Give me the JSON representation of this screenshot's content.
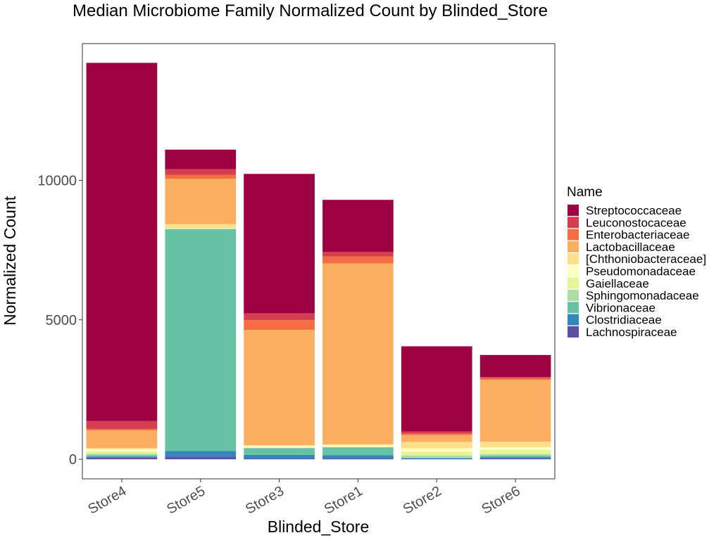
{
  "chart_data": {
    "type": "bar",
    "stacked": true,
    "title": "Median Microbiome Family Normalized Count by Blinded_Store",
    "xlabel": "Blinded_Store",
    "ylabel": "Normalized Count",
    "ylim": [
      -700,
      14900
    ],
    "yticks": [
      0,
      5000,
      10000
    ],
    "ytick_labels": [
      "0",
      "5000",
      "10000"
    ],
    "grid": false,
    "legend_position": "right",
    "legend_title": "Name",
    "categories": [
      "Store4",
      "Store5",
      "Store3",
      "Store1",
      "Store2",
      "Store6"
    ],
    "series": [
      {
        "name": "Lachnospiraceae",
        "color": "#5e4fa2",
        "values": [
          60,
          100,
          30,
          30,
          20,
          40
        ]
      },
      {
        "name": "Clostridiaceae",
        "color": "#3288bd",
        "values": [
          40,
          200,
          130,
          120,
          20,
          40
        ]
      },
      {
        "name": "Vibrionaceae",
        "color": "#66c2a5",
        "values": [
          50,
          7950,
          240,
          280,
          20,
          50
        ]
      },
      {
        "name": "Sphingomonadaceae",
        "color": "#abdda4",
        "values": [
          50,
          10,
          10,
          10,
          80,
          60
        ]
      },
      {
        "name": "Gaiellaceae",
        "color": "#e6f598",
        "values": [
          80,
          10,
          10,
          10,
          130,
          150
        ]
      },
      {
        "name": "Pseudomonadaceae",
        "color": "#ffffbf",
        "values": [
          90,
          10,
          60,
          60,
          120,
          90
        ]
      },
      {
        "name": "[Chthoniobacteraceae]",
        "color": "#fee08b",
        "values": [
          30,
          150,
          30,
          30,
          230,
          200
        ]
      },
      {
        "name": "Lactobacillaceae",
        "color": "#fdae61",
        "values": [
          640,
          1630,
          4130,
          6480,
          250,
          2220
        ]
      },
      {
        "name": "Enterobacteriaceae",
        "color": "#f46d43",
        "values": [
          50,
          140,
          350,
          250,
          50,
          60
        ]
      },
      {
        "name": "Leuconostocaceae",
        "color": "#d53e4f",
        "values": [
          280,
          200,
          240,
          170,
          80,
          40
        ]
      },
      {
        "name": "Streptococcaceae",
        "color": "#9e0142",
        "values": [
          12840,
          700,
          5000,
          1860,
          3050,
          790
        ]
      }
    ]
  }
}
